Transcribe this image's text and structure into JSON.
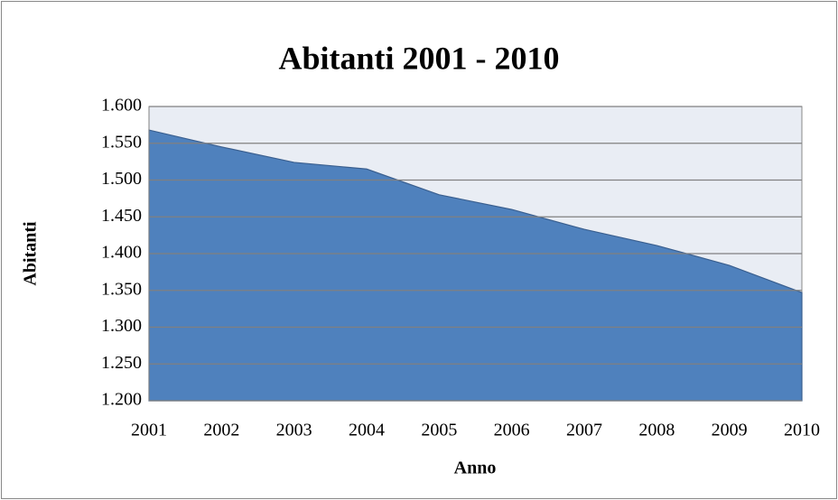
{
  "chart_data": {
    "type": "area",
    "title": "Abitanti 2001 - 2010",
    "x_label": "Anno",
    "y_label": "Abitanti",
    "categories": [
      "2001",
      "2002",
      "2003",
      "2004",
      "2005",
      "2006",
      "2007",
      "2008",
      "2009",
      "2010"
    ],
    "values": [
      1568,
      1545,
      1524,
      1515,
      1480,
      1460,
      1433,
      1411,
      1384,
      1347
    ],
    "color": "#4f81bd",
    "ylim": [
      1200,
      1600
    ],
    "yticks": [
      {
        "value": 1200,
        "label": "1.200"
      },
      {
        "value": 1250,
        "label": "1.250"
      },
      {
        "value": 1300,
        "label": "1.300"
      },
      {
        "value": 1350,
        "label": "1.350"
      },
      {
        "value": 1400,
        "label": "1.400"
      },
      {
        "value": 1450,
        "label": "1.450"
      },
      {
        "value": 1500,
        "label": "1.500"
      },
      {
        "value": 1550,
        "label": "1.550"
      },
      {
        "value": 1600,
        "label": "1.600"
      }
    ],
    "grid": true
  }
}
